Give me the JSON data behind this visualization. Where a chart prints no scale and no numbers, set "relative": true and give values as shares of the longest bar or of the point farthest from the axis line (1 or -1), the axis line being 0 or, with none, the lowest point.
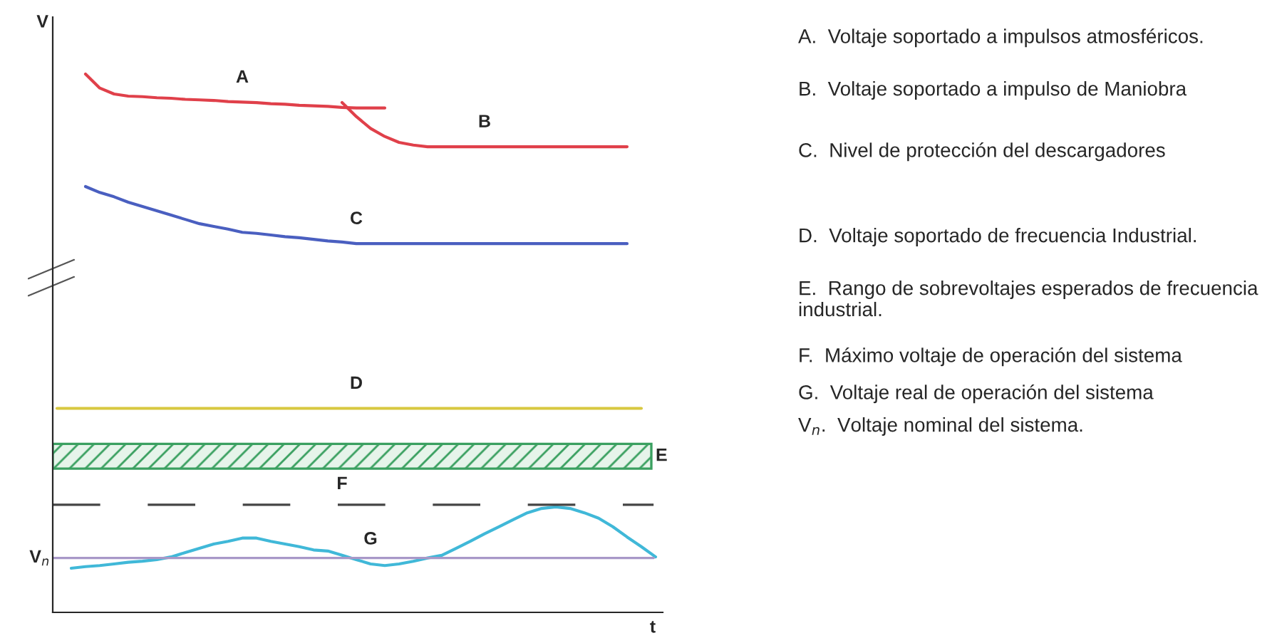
{
  "chart_data": {
    "type": "line",
    "relative": true,
    "ylabel": "V",
    "xlabel": "t",
    "legend": false,
    "categories": [
      null,
      null,
      null,
      null,
      null,
      null,
      null,
      null,
      null,
      null,
      null,
      null,
      null,
      null,
      null,
      null,
      null,
      null,
      null,
      null,
      null,
      null,
      null,
      null,
      null,
      null,
      null,
      null,
      null,
      null,
      null,
      null,
      null,
      null,
      null,
      null,
      null,
      null,
      null,
      null,
      null,
      null,
      null
    ],
    "series": [
      {
        "name": "A",
        "color": "#e0404a",
        "values": [
          null,
          null,
          1.0,
          0.974,
          0.963,
          0.959,
          0.958,
          0.956,
          0.955,
          0.953,
          0.952,
          0.951,
          0.949,
          0.948,
          0.947,
          0.945,
          0.944,
          0.942,
          0.941,
          0.94,
          0.938,
          0.937,
          0.937,
          0.937,
          null,
          null,
          null,
          null,
          null,
          null,
          null,
          null,
          null,
          null,
          null,
          null,
          null,
          null,
          null,
          null,
          null,
          null,
          null
        ]
      },
      {
        "name": "B",
        "color": "#e0404a",
        "values": [
          null,
          null,
          null,
          null,
          null,
          null,
          null,
          null,
          null,
          null,
          null,
          null,
          null,
          null,
          null,
          null,
          null,
          null,
          null,
          null,
          0.947,
          0.921,
          0.899,
          0.884,
          0.873,
          0.868,
          0.865,
          0.865,
          0.865,
          0.865,
          0.865,
          0.865,
          0.865,
          0.865,
          0.865,
          0.865,
          0.865,
          0.865,
          0.865,
          0.865,
          0.865,
          null,
          null
        ]
      },
      {
        "name": "C",
        "color": "#4a5fc0",
        "values": [
          null,
          null,
          0.791,
          0.78,
          0.772,
          0.762,
          0.754,
          0.746,
          0.738,
          0.73,
          0.722,
          0.717,
          0.712,
          0.706,
          0.704,
          0.701,
          0.698,
          0.696,
          0.693,
          0.69,
          0.688,
          0.685,
          0.685,
          0.685,
          0.685,
          0.685,
          0.685,
          0.685,
          0.685,
          0.685,
          0.685,
          0.685,
          0.685,
          0.685,
          0.685,
          0.685,
          0.685,
          0.685,
          0.685,
          0.685,
          0.685,
          null,
          null
        ]
      },
      {
        "name": "D",
        "color": "#d8c840",
        "values": [
          0.379,
          0.379,
          0.379,
          0.379,
          0.379,
          0.379,
          0.379,
          0.379,
          0.379,
          0.379,
          0.379,
          0.379,
          0.379,
          0.379,
          0.379,
          0.379,
          0.379,
          0.379,
          0.379,
          0.379,
          0.379,
          0.379,
          0.379,
          0.379,
          0.379,
          0.379,
          0.379,
          0.379,
          0.379,
          0.379,
          0.379,
          0.379,
          0.379,
          0.379,
          0.379,
          0.379,
          0.379,
          0.379,
          0.379,
          0.379,
          0.379,
          0.379,
          null
        ]
      },
      {
        "name": "G",
        "color": "#40b8d8",
        "values": [
          null,
          0.082,
          0.085,
          0.087,
          0.09,
          0.093,
          0.095,
          0.098,
          0.103,
          0.111,
          0.119,
          0.127,
          0.132,
          0.138,
          0.138,
          0.132,
          0.127,
          0.122,
          0.116,
          0.114,
          0.106,
          0.098,
          0.09,
          0.087,
          0.09,
          0.095,
          0.101,
          0.106,
          0.119,
          0.132,
          0.146,
          0.159,
          0.172,
          0.185,
          0.193,
          0.196,
          0.193,
          0.185,
          0.175,
          0.159,
          0.14,
          0.122,
          0.103
        ]
      }
    ],
    "bands": [
      {
        "axis": "y",
        "from": 0.267,
        "to": 0.313,
        "label": "E",
        "color": "#3aa060"
      }
    ],
    "ref_lines": [
      {
        "axis": "y",
        "value": 0.2,
        "label": "F",
        "color": "#444444",
        "line_style": "dashed"
      },
      {
        "axis": "y",
        "value": 0.101,
        "label": "V$_{n}$",
        "color": "#a898c8",
        "line_style": "solid"
      }
    ],
    "annotations": [
      "A.  Voltaje soportado a impulsos atmosféricos.",
      "B.  Voltaje soportado a impulso de Maniobra",
      "C.  Nivel de protección del descargadores",
      "D.  Voltaje soportado de frecuencia Industrial.",
      "E.  Rango de sobrevoltajes esperados de frecuencia industrial.",
      "F.  Máximo voltaje de operación del sistema",
      "G.  Voltaje real de operación del sistema",
      "V$_{n}$.  Voltaje nominal del sistema."
    ]
  }
}
